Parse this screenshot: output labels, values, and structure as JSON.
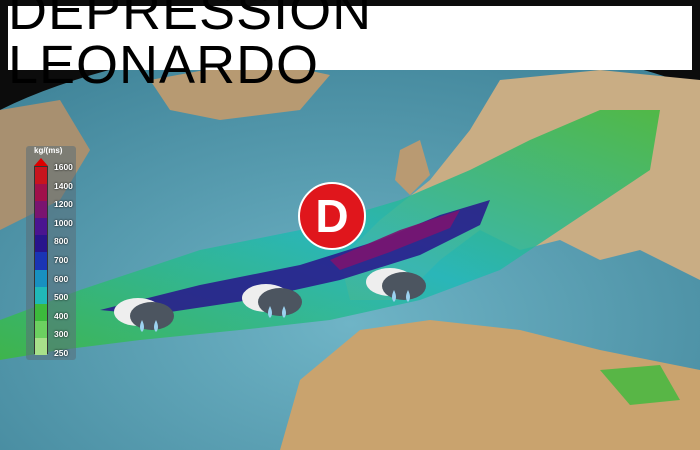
{
  "title": "DEPRESSION LEONARDO",
  "low_marker": {
    "label": "D",
    "color": "#e0161c"
  },
  "legend": {
    "unit": "kg/(ms)",
    "labels": [
      "1600",
      "1400",
      "1200",
      "1000",
      "800",
      "700",
      "600",
      "500",
      "400",
      "300",
      "250"
    ],
    "colors": [
      "#c8141e",
      "#a0104a",
      "#7a1470",
      "#4a1490",
      "#28148c",
      "#1a34b4",
      "#1890c0",
      "#20b8b8",
      "#3cba3c",
      "#6cd060",
      "#a8e08a"
    ]
  },
  "icons": [
    "rain-cloud-icon",
    "rain-cloud-icon",
    "rain-cloud-icon"
  ]
}
